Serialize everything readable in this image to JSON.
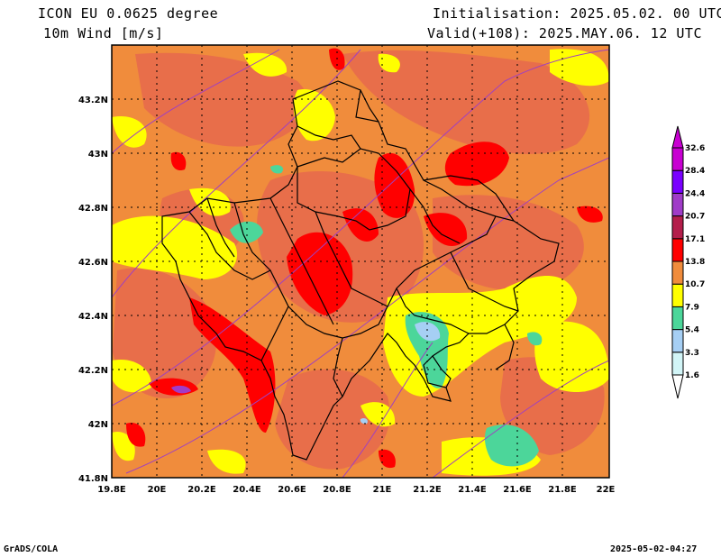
{
  "header": {
    "model_title": "ICON EU 0.0625 degree",
    "variable": "10m Wind [m/s]",
    "initialisation": "Initialisation: 2025.05.02. 00 UTC",
    "valid": "Valid(+108): 2025.MAY.06. 12 UTC"
  },
  "footer": {
    "credit": "GrADS/COLA",
    "timestamp": "2025-05-02-04:27"
  },
  "map": {
    "lat_labels": [
      "43.2N",
      "43N",
      "42.8N",
      "42.6N",
      "42.4N",
      "42.2N",
      "42N",
      "41.8N"
    ],
    "lon_labels": [
      "19.8E",
      "20E",
      "20.2E",
      "20.4E",
      "20.6E",
      "20.8E",
      "21E",
      "21.2E",
      "21.4E",
      "21.6E",
      "21.8E",
      "22E"
    ],
    "lat_range": [
      41.8,
      43.4
    ],
    "lon_range": [
      19.8,
      22.0
    ],
    "gridlines": "dotted",
    "background_color": "#f08c3c"
  },
  "legend": {
    "levels": [
      "1.6",
      "3.3",
      "5.4",
      "7.9",
      "10.7",
      "13.8",
      "17.1",
      "20.7",
      "24.4",
      "28.4",
      "32.6"
    ],
    "colors": [
      "#d2f5f7",
      "#a6cff4",
      "#4cd69a",
      "#ffff00",
      "#f08c3c",
      "#ff0000",
      "#b41e4b",
      "#a03cc8",
      "#7a00ff",
      "#c800d2"
    ],
    "placement": "right",
    "unit": "m/s"
  }
}
